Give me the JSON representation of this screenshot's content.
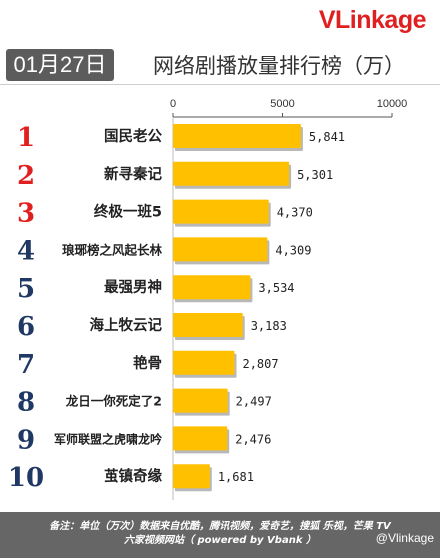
{
  "header": {
    "brand": "VLinkage",
    "date": "01月27日",
    "title": "网络剧播放量排行榜（万）"
  },
  "chart_data": {
    "type": "bar",
    "orientation": "horizontal",
    "title": "网络剧播放量排行榜（万）",
    "xlim": [
      0,
      10000
    ],
    "ticks": [
      "0",
      "5000",
      "10000"
    ],
    "tick_values": [
      0,
      5000,
      10000
    ],
    "ranks": [
      "1",
      "2",
      "3",
      "4",
      "5",
      "6",
      "7",
      "8",
      "9",
      "10"
    ],
    "categories": [
      "国民老公",
      "新寻秦记",
      "终极一班5",
      "琅琊榜之风起长林",
      "最强男神",
      "海上牧云记",
      "艳骨",
      "龙日一你死定了2",
      "军师联盟之虎啸龙吟",
      "茧镇奇缘"
    ],
    "values": [
      5841,
      5301,
      4370,
      4309,
      3534,
      3183,
      2807,
      2497,
      2476,
      1681
    ],
    "value_labels": [
      "5,841",
      "5,301",
      "4,370",
      "4,309",
      "3,534",
      "3,183",
      "2,807",
      "2,497",
      "2,476",
      "1,681"
    ],
    "colors": {
      "bar": "#ffc000",
      "bar_shadow": "#b8b8b8",
      "rank_top3": "#e02020",
      "rank_other": "#1f3864"
    }
  },
  "footer": {
    "line1": "备注：单位（万次）数据来自优酷，腾讯视频，爱奇艺，搜狐 乐视，芒果 TV",
    "line2": "六家视频网站（ powered by Vbank ）",
    "watermark": "@Vlinkage"
  }
}
